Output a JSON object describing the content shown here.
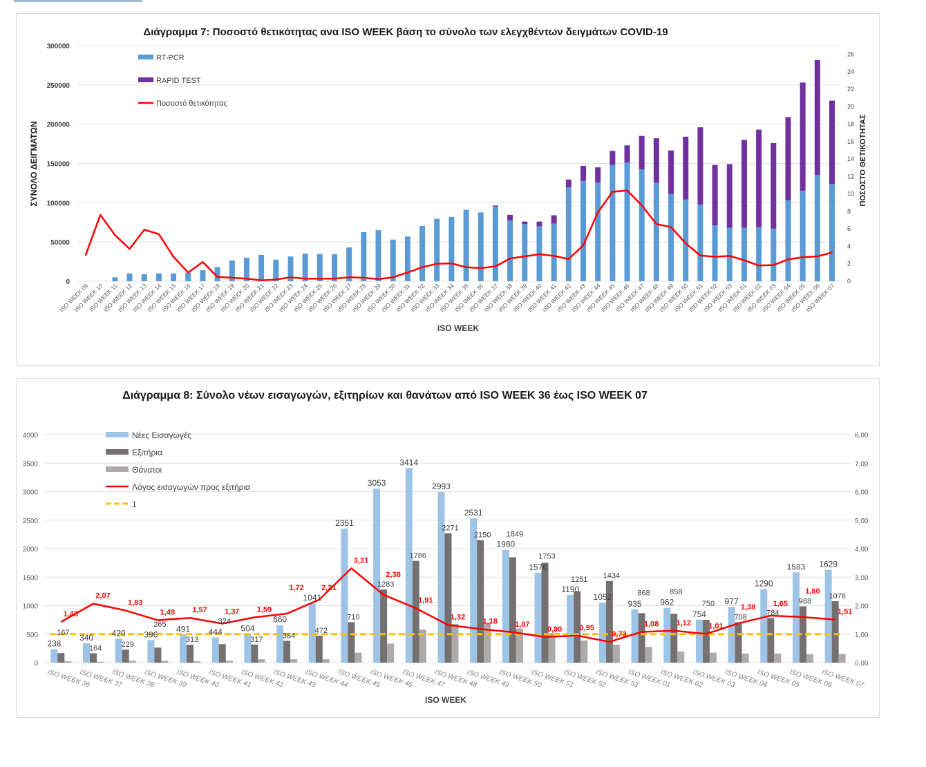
{
  "chart_data": [
    {
      "type": "bar",
      "stacked": true,
      "title": "Διάγραμμα 7: Ποσοστό θετικότητας ανα ISO WEEK βάση το σύνολο των ελεγχθέντων δειγμάτων COVID-19",
      "xlabel": "ISO WEEK",
      "ylabel": "ΣΥΝΟΛΟ ΔΕΙΓΜΑΤΩΝ",
      "ylabel_right": "ΠΟΣΟΣΤΟ ΘΕΤΙΚΟΤΗΤΑΣ",
      "ylim": [
        0,
        300000
      ],
      "ytick_step": 50000,
      "ylim_right": [
        0,
        27
      ],
      "ytick_right": [
        0,
        2,
        4,
        6,
        8,
        10,
        12,
        14,
        16,
        18,
        20,
        22,
        24,
        26
      ],
      "legend_position": "top-left",
      "grid": true,
      "categories": [
        "ISO WEEK 09",
        "ISO WEEK 10",
        "ISO WEEK 11",
        "ISO WEEK 12",
        "ISO WEEK 13",
        "ISO WEEK 14",
        "ISO WEEK 15",
        "ISO WEEK 16",
        "ISO WEEK 17",
        "ISO WEEK 18",
        "ISO WEEK 19",
        "ISO WEEK 20",
        "ISO WEEK 21",
        "ISO WEEK 22",
        "ISO WEEK 23",
        "ISO WEEK 24",
        "ISO WEEK 25",
        "ISO WEEK 26",
        "ISO WEEK 27",
        "ISO WEEK 28",
        "ISO WEEK 29",
        "ISO WEEK 30",
        "ISO WEEK 31",
        "ISO WEEK 32",
        "ISO WEEK 33",
        "ISO WEEK 34",
        "ISO WEEK 35",
        "ISO WEEK 36",
        "ISO WEEK 37",
        "ISO WEEK 38",
        "ISO WEEK 39",
        "ISO WEEK 40",
        "ISO WEEK 41",
        "ISO WEEK 42",
        "ISO WEEK 43",
        "ISO WEEK 44",
        "ISO WEEK 45",
        "ISO WEEK 46",
        "ISO WEEK 47",
        "ISO WEEK 48",
        "ISO WEEK 49",
        "ISO WEEK 50",
        "ISO WEEK 51",
        "ISO WEEK 52",
        "ISO WEEK 53",
        "ISO WEEK 01",
        "ISO WEEK 02",
        "ISO WEEK 03",
        "ISO WEEK 04",
        "ISO WEEK 05",
        "ISO WEEK 06",
        "ISO WEEK 07"
      ],
      "series": [
        {
          "name": "RT-PCR",
          "axis": "left",
          "kind": "bar",
          "color": "#5b9bd5",
          "values": [
            0,
            0,
            5000,
            10000,
            9000,
            10000,
            10000,
            11000,
            14000,
            18000,
            26500,
            30000,
            33500,
            27500,
            31500,
            35300,
            34500,
            34500,
            43000,
            62500,
            65000,
            53000,
            57000,
            70500,
            79500,
            82000,
            91000,
            87600,
            95500,
            77300,
            73000,
            70000,
            73500,
            119500,
            128000,
            125500,
            148000,
            151000,
            142500,
            125500,
            111000,
            104000,
            97500,
            71000,
            68000,
            68000,
            69000,
            67000,
            103000,
            115000,
            135500,
            124000
          ]
        },
        {
          "name": "RAPID TEST",
          "axis": "left",
          "kind": "bar",
          "color": "#7030a0",
          "values": [
            0,
            0,
            0,
            0,
            0,
            0,
            0,
            0,
            0,
            0,
            0,
            0,
            0,
            0,
            0,
            0,
            0,
            0,
            0,
            0,
            0,
            0,
            0,
            0,
            0,
            0,
            0,
            0,
            1000,
            7200,
            3000,
            6000,
            10500,
            10000,
            19000,
            19500,
            18000,
            22000,
            42500,
            56500,
            55500,
            80000,
            98500,
            77000,
            81000,
            112000,
            124000,
            109000,
            106000,
            138000,
            146000,
            106000
          ]
        },
        {
          "name": "Ποσοστό θετικότητας",
          "axis": "right",
          "kind": "line",
          "color": "#ff0000",
          "values": [
            3.0,
            7.6,
            5.3,
            3.7,
            5.9,
            5.4,
            2.8,
            1.0,
            2.2,
            0.5,
            0.4,
            0.3,
            0.1,
            0.2,
            0.45,
            0.3,
            0.3,
            0.3,
            0.45,
            0.4,
            0.25,
            0.45,
            1.0,
            1.6,
            2.0,
            2.05,
            1.6,
            1.5,
            1.7,
            2.6,
            2.85,
            3.1,
            2.9,
            2.55,
            4.1,
            7.9,
            10.25,
            10.4,
            8.7,
            6.55,
            6.2,
            4.35,
            2.95,
            2.8,
            2.9,
            2.4,
            1.8,
            1.85,
            2.5,
            2.75,
            2.85,
            3.3
          ]
        }
      ]
    },
    {
      "type": "bar",
      "title": "Διάγραμμα 8: Σύνολο νέων εισαγωγών, εξιτηρίων και θανάτων από ISO WEEK 36 έως ISO WEEK 07",
      "xlabel": "ISO WEEK",
      "ylim": [
        0,
        4000
      ],
      "ytick_step": 500,
      "ylim_right": [
        0,
        8
      ],
      "ytick_right_step": 1,
      "legend_position": "top-left",
      "grid": true,
      "categories": [
        "ISO WEEK 36",
        "ISO WEEK 37",
        "ISO WEEK 38",
        "ISO WEEK 39",
        "ISO WEEK 40",
        "ISO WEEK 41",
        "ISO WEEK 42",
        "ISO WEEK 43",
        "ISO WEEK 44",
        "ISO WEEK 45",
        "ISO WEEK 46",
        "ISO WEEK 47",
        "ISO WEEK 48",
        "ISO WEEK 49",
        "ISO WEEK 50",
        "ISO WEEK 51",
        "ISO WEEK 52",
        "ISO WEEK 53",
        "ISO WEEK 01",
        "ISO WEEK 02",
        "ISO WEEK 03",
        "ISO WEEK 04",
        "ISO WEEK 05",
        "ISO WEEK 06",
        "ISO WEEK 07"
      ],
      "series": [
        {
          "name": "Νέες Εισαγωγές",
          "kind": "bar",
          "axis": "left",
          "color": "#9dc3e6",
          "labeled": true,
          "values": [
            238,
            340,
            420,
            396,
            491,
            444,
            504,
            660,
            1041,
            2351,
            3053,
            3414,
            2993,
            2531,
            1980,
            1576,
            1190,
            1052,
            935,
            962,
            754,
            977,
            1290,
            1583,
            1629
          ]
        },
        {
          "name": "Εξιτήρια",
          "kind": "bar",
          "axis": "left",
          "color": "#767171",
          "labeled": true,
          "values": [
            167,
            164,
            229,
            265,
            313,
            324,
            317,
            384,
            472,
            710,
            1283,
            1786,
            2271,
            2150,
            1849,
            1753,
            1251,
            1434,
            868,
            858,
            750,
            708,
            784,
            988,
            1078
          ]
        },
        {
          "name": "Θάνατοι",
          "kind": "bar",
          "axis": "left",
          "color": "#aeaaaa",
          "labeled": false,
          "values": [
            25,
            15,
            35,
            35,
            25,
            35,
            60,
            60,
            60,
            175,
            335,
            580,
            680,
            700,
            600,
            520,
            390,
            315,
            275,
            195,
            175,
            160,
            160,
            150,
            155
          ]
        },
        {
          "name": "Λόγος εισαγωγών προς εξιτήρια",
          "kind": "line",
          "axis": "right",
          "color": "#ff0000",
          "labeled": true,
          "values": [
            1.43,
            2.07,
            1.83,
            1.49,
            1.57,
            1.37,
            1.59,
            1.72,
            2.21,
            3.31,
            2.38,
            1.91,
            1.32,
            1.18,
            1.07,
            0.9,
            0.95,
            0.73,
            1.08,
            1.12,
            1.01,
            1.38,
            1.65,
            1.6,
            1.51
          ],
          "labels": [
            "1,43",
            "2,07",
            "1,83",
            "1,49",
            "1,57",
            "1,37",
            "1,59",
            "1,72",
            "2,21",
            "3,31",
            "2,38",
            "1,91",
            "1,32",
            "1,18",
            "1,07",
            "0,90",
            "0,95",
            "0,73",
            "1,08",
            "1,12",
            "1,01",
            "1,38",
            "1,65",
            "1,60",
            "1,51"
          ]
        },
        {
          "name": "1",
          "kind": "reference-line",
          "axis": "right",
          "color": "#ffc000",
          "value": 1
        }
      ]
    }
  ]
}
